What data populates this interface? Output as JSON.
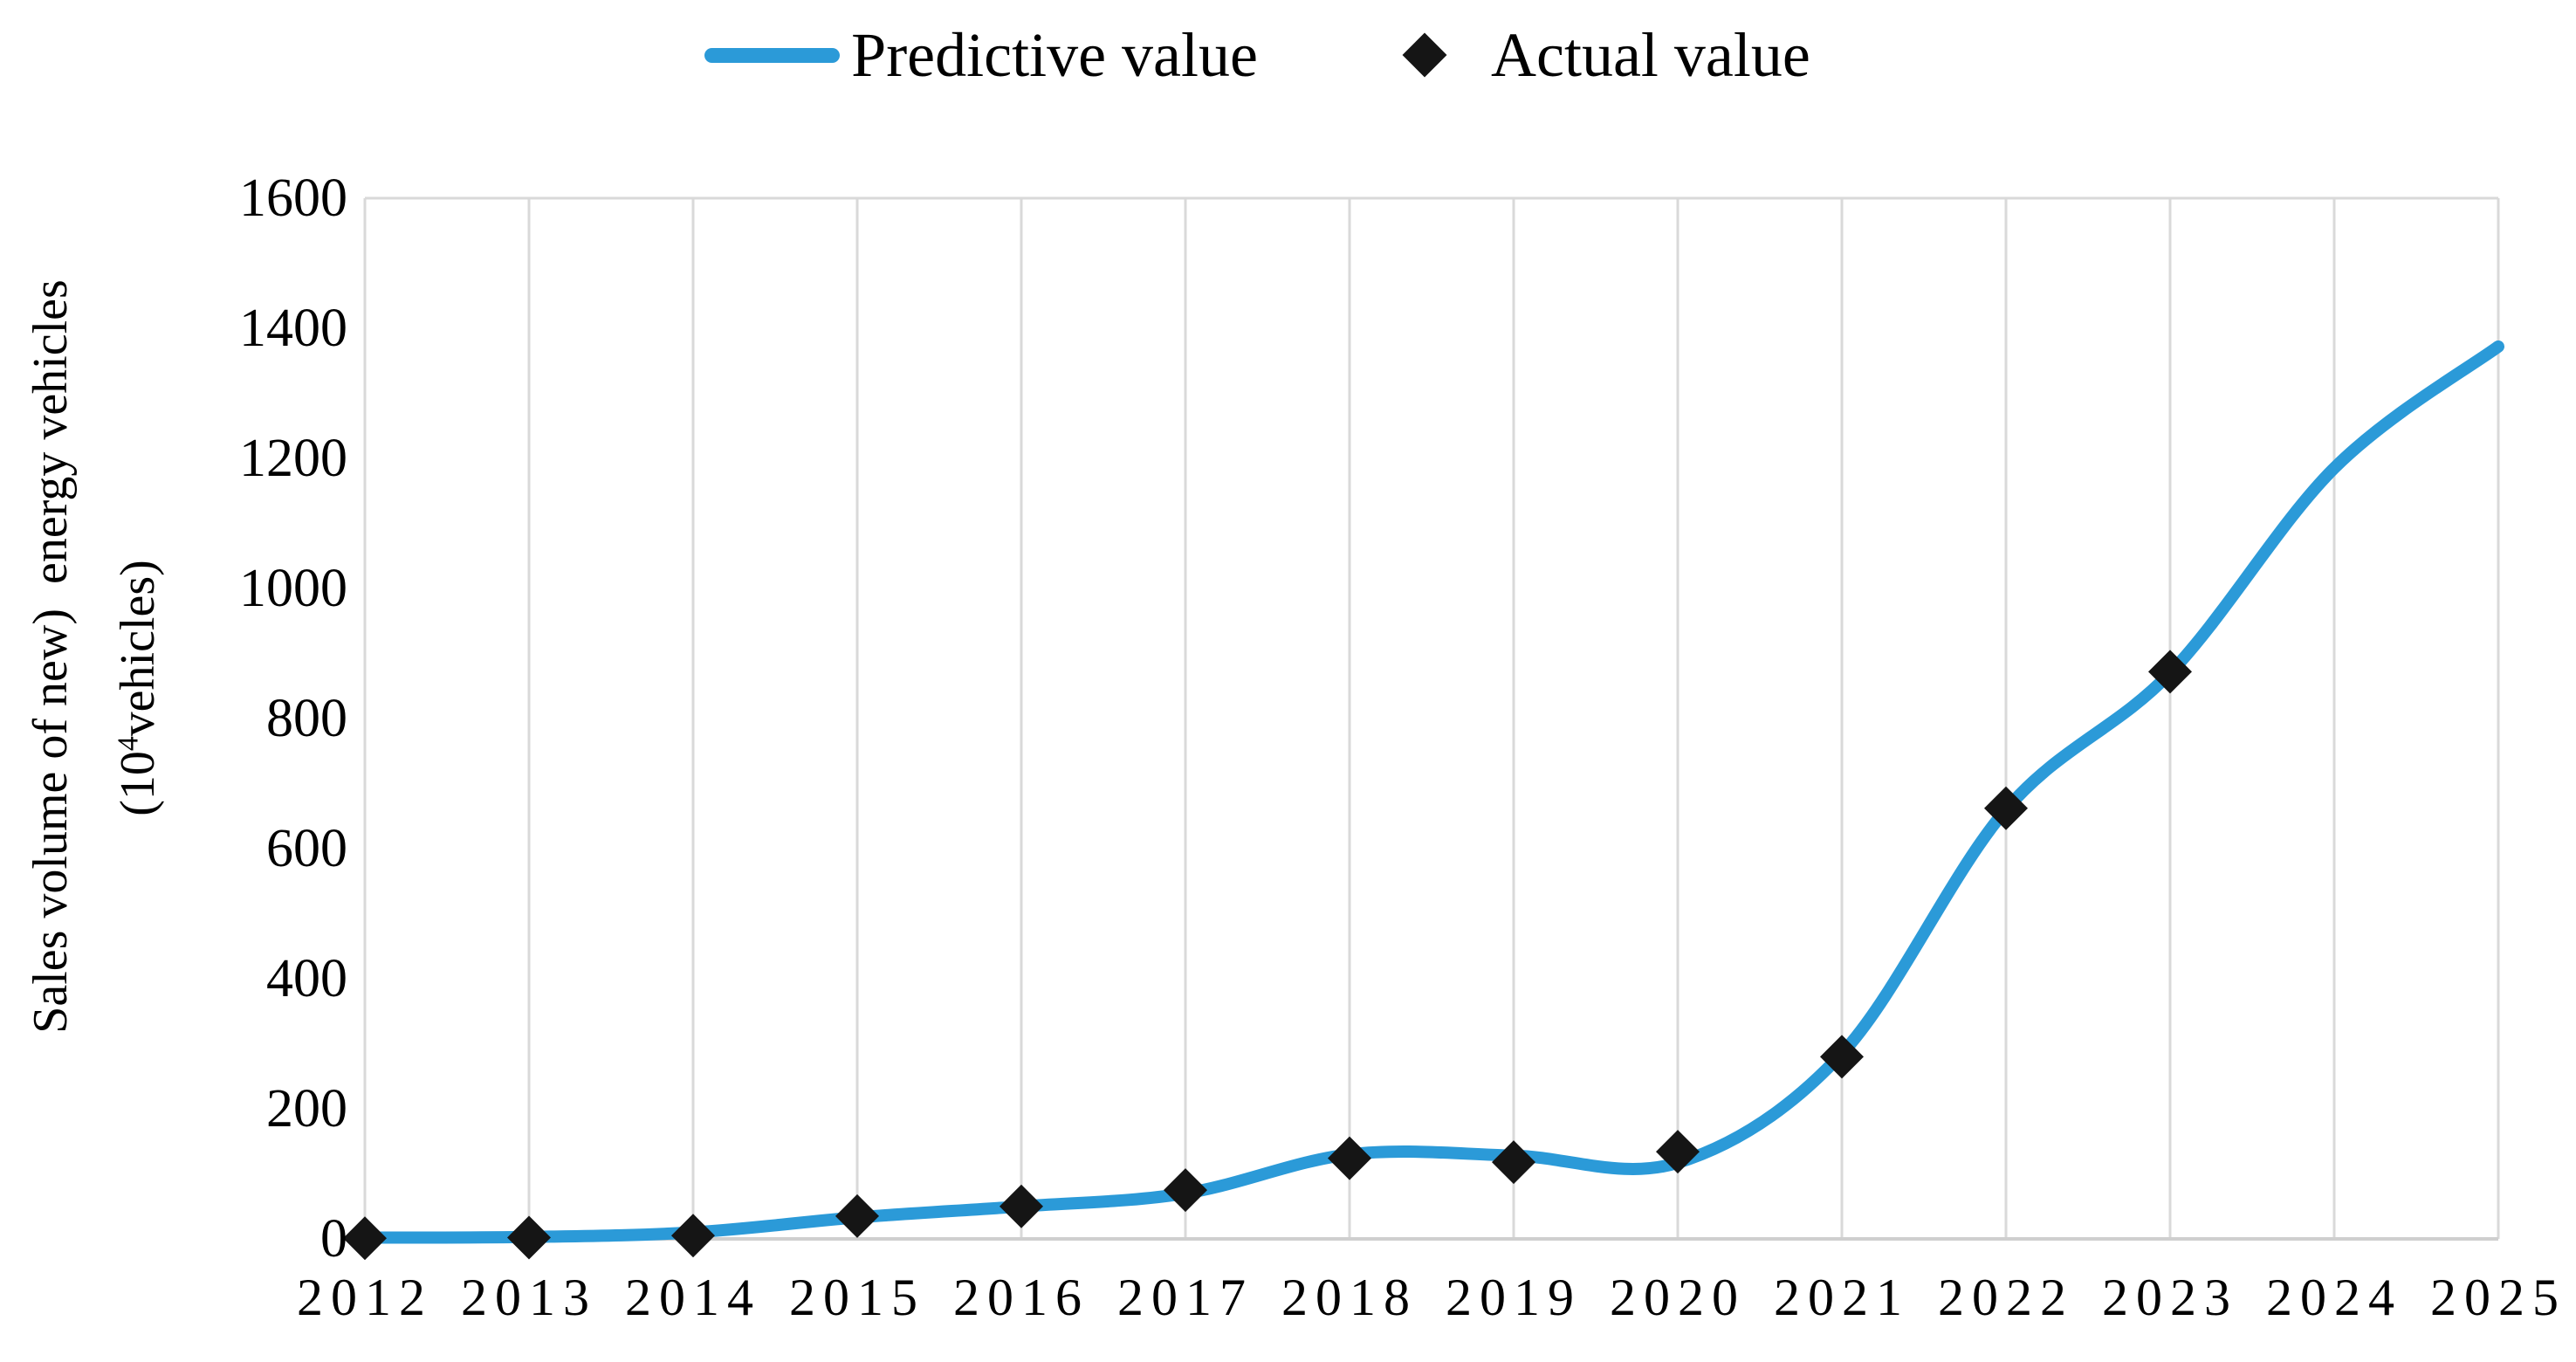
{
  "legend": {
    "items": [
      {
        "label": "Predictive value",
        "swatch": "line",
        "color": "#2B9AD8"
      },
      {
        "label": "Actual value",
        "swatch": "diamond",
        "color": "#151515"
      }
    ]
  },
  "y_axis": {
    "title_line1": "Sales volume of new)  energy vehicles",
    "unit_open": "(10",
    "unit_sup": "4",
    "unit_close": "vehicles)",
    "ticks": [
      "0",
      "200",
      "400",
      "600",
      "800",
      "1000",
      "1200",
      "1400",
      "1600"
    ]
  },
  "x_axis": {
    "ticks": [
      "2012",
      "2013",
      "2014",
      "2015",
      "2016",
      "2017",
      "2018",
      "2019",
      "2020",
      "2021",
      "2022",
      "2023",
      "2024",
      "2025"
    ]
  },
  "chart_data": {
    "type": "line",
    "title": "",
    "xlabel": "",
    "ylabel": "Sales volume of new) energy vehicles (10^4 vehicles)",
    "x": [
      2012,
      2013,
      2014,
      2015,
      2016,
      2017,
      2018,
      2019,
      2020,
      2021,
      2022,
      2023,
      2024,
      2025
    ],
    "series": [
      {
        "name": "Predictive value",
        "type": "smooth-line",
        "color": "#2B9AD8",
        "values": [
          2,
          3,
          10,
          33,
          50,
          70,
          130,
          128,
          117,
          285,
          660,
          870,
          1185,
          1372
        ]
      },
      {
        "name": "Actual value",
        "type": "scatter",
        "marker": "diamond",
        "color": "#151515",
        "values": [
          1,
          2,
          5,
          35,
          50,
          75,
          124,
          118,
          134,
          280,
          662,
          872,
          null,
          null
        ]
      }
    ],
    "ylim": [
      0,
      1600
    ],
    "ytick_step": 200,
    "grid": "vertical-only",
    "gridline_color": "#D9D9D9",
    "axis_line_color": "#CFCFCF",
    "legend_position": "top-center"
  }
}
